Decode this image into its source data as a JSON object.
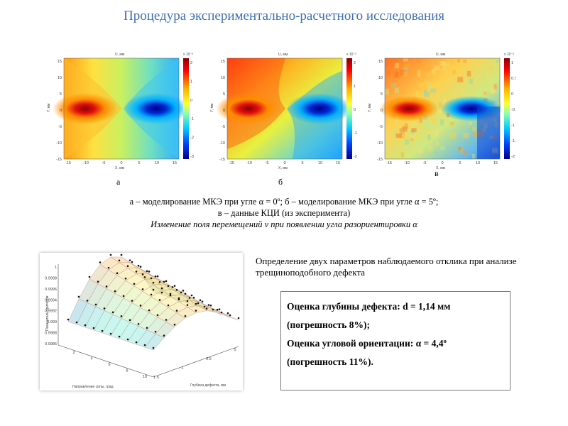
{
  "title": "Процедура экспериментально-расчетного исследования",
  "panels": [
    {
      "letter": "а",
      "top_label": "U, мм",
      "scale": "x 10⁻³",
      "ylabel": "Y, мм",
      "xlabel": "X, мм",
      "yticks": [
        "15",
        "10",
        "5",
        "0",
        "-5",
        "-10",
        "-15"
      ],
      "xticks": [
        "-15",
        "-10",
        "-5",
        "0",
        "5",
        "10",
        "15"
      ],
      "cbticks": [
        "2",
        "1",
        "0",
        "-1",
        "-2",
        "-3"
      ]
    },
    {
      "letter": "б",
      "top_label": "U, мм",
      "scale": "x 10⁻³",
      "ylabel": "Y, мм",
      "xlabel": "X, мм",
      "yticks": [
        "15",
        "10",
        "5",
        "0",
        "-5",
        "-10",
        "-15"
      ],
      "xticks": [
        "-15",
        "-10",
        "-5",
        "0",
        "5",
        "10",
        "15"
      ],
      "cbticks": [
        "2",
        "1",
        "0",
        "-1",
        "-2"
      ]
    },
    {
      "letter": "в",
      "top_label": "U, мм",
      "scale": "x 10⁻³",
      "ylabel": "Y, мм",
      "xlabel": "X, мм",
      "yticks": [
        "15",
        "10",
        "5",
        "0",
        "-5",
        "-10",
        "-15"
      ],
      "xticks": [
        "-15",
        "-10",
        "-5",
        "0",
        "5",
        "10",
        "15"
      ],
      "cbticks": [
        "1",
        "0.5",
        "0",
        "-0.5",
        "-1",
        "-1.5",
        "-2"
      ]
    }
  ],
  "captions": {
    "line1": "а – моделирование МКЭ при угле α = 0º; б – моделирование МКЭ при угле α = 5º;",
    "line2": "в – данные КЦИ (из эксперимента)",
    "line3": "Изменение поля перемещений v  при появлении угла разориентировки α"
  },
  "description": "Определение двух параметров наблюдаемого отклика при анализе трещиноподобного дефекта",
  "result": {
    "line1": "Оценка глубины дефекта: d = 1,14 мм",
    "line2": "(погрешность 8%);",
    "line3": "Оценка угловой ориентации: α = 4,4º",
    "line4": "(погрешность 11%)."
  },
  "surface_plot": {
    "zlabel": "Показатель-критерия",
    "xlabel": "Направление силы, град",
    "ylabel": "Глубина дефекта, мм",
    "zticks": [
      "1",
      "0.9998",
      "0.9996",
      "0.9994",
      "0.9992",
      "0.999",
      "0.9988",
      "0.9986"
    ],
    "xticks": [
      "2",
      "4",
      "6",
      "8",
      "10"
    ],
    "yticks": [
      "0",
      "0.5",
      "1",
      "1.5"
    ]
  }
}
